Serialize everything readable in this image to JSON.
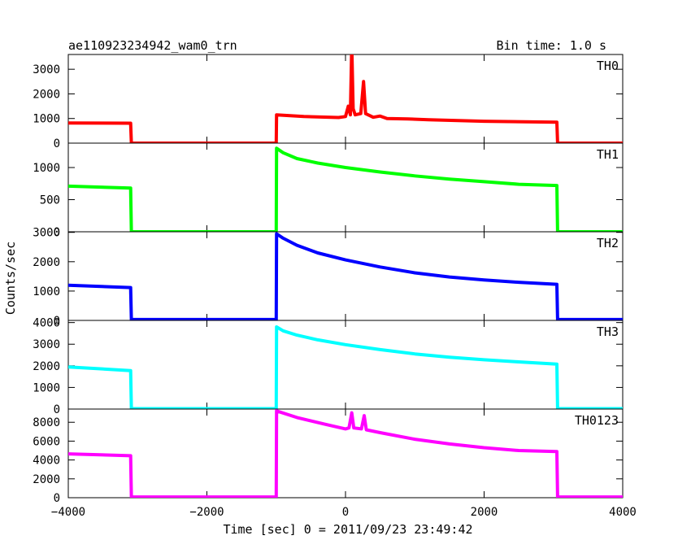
{
  "figure": {
    "title": "ae110923234942_wam0_trn",
    "bin_time": "Bin time: 1.0 s",
    "xlabel": "Time [sec] 0 = 2011/09/23 23:49:42",
    "ylabel": "Counts/sec"
  },
  "chart_data": {
    "type": "line",
    "title": "ae110923234942_wam0_trn",
    "xlabel": "Time [sec] 0 = 2011/09/23 23:49:42",
    "ylabel": "Counts/sec",
    "xlim": [
      -4000,
      4000
    ],
    "x_ticks": [
      -4000,
      -2000,
      0,
      2000,
      4000
    ],
    "x_tick_labels": [
      "−4000",
      "−2000",
      "0",
      "2000",
      "4000"
    ],
    "grid": false,
    "panels": [
      {
        "name": "TH0",
        "color": "#ff0000",
        "ylim": [
          0,
          3600
        ],
        "yticks": [
          0,
          1000,
          2000,
          3000
        ],
        "ytick_labels": [
          "0",
          "1000",
          "2000",
          "3000"
        ],
        "points": [
          [
            -4000,
            820
          ],
          [
            -3100,
            810
          ],
          [
            -3090,
            0
          ],
          [
            -1000,
            0
          ],
          [
            -995,
            1150
          ],
          [
            -600,
            1080
          ],
          [
            -100,
            1040
          ],
          [
            0,
            1080
          ],
          [
            40,
            1500
          ],
          [
            70,
            1150
          ],
          [
            90,
            4000
          ],
          [
            110,
            1400
          ],
          [
            140,
            1150
          ],
          [
            220,
            1200
          ],
          [
            260,
            2500
          ],
          [
            290,
            1200
          ],
          [
            400,
            1050
          ],
          [
            500,
            1100
          ],
          [
            600,
            1000
          ],
          [
            900,
            980
          ],
          [
            1200,
            950
          ],
          [
            2000,
            890
          ],
          [
            3050,
            850
          ],
          [
            3060,
            0
          ],
          [
            4000,
            0
          ]
        ]
      },
      {
        "name": "TH1",
        "color": "#00ff00",
        "ylim": [
          0,
          1380
        ],
        "yticks": [
          0,
          500,
          1000
        ],
        "ytick_labels": [
          "0",
          "500",
          "1000"
        ],
        "points": [
          [
            -4000,
            710
          ],
          [
            -3100,
            680
          ],
          [
            -3090,
            0
          ],
          [
            -1000,
            0
          ],
          [
            -995,
            1300
          ],
          [
            -900,
            1230
          ],
          [
            -700,
            1140
          ],
          [
            -400,
            1070
          ],
          [
            0,
            1000
          ],
          [
            500,
            930
          ],
          [
            1000,
            870
          ],
          [
            1500,
            820
          ],
          [
            2000,
            780
          ],
          [
            2500,
            740
          ],
          [
            3050,
            720
          ],
          [
            3060,
            0
          ],
          [
            4000,
            0
          ]
        ]
      },
      {
        "name": "TH2",
        "color": "#0000ff",
        "ylim": [
          0,
          3020
        ],
        "yticks": [
          0,
          1000,
          2000,
          3000
        ],
        "ytick_labels": [
          "0",
          "1000",
          "2000",
          "3000"
        ],
        "points": [
          [
            -4000,
            1200
          ],
          [
            -3100,
            1120
          ],
          [
            -3090,
            30
          ],
          [
            -1000,
            30
          ],
          [
            -995,
            2950
          ],
          [
            -900,
            2800
          ],
          [
            -700,
            2560
          ],
          [
            -400,
            2300
          ],
          [
            0,
            2060
          ],
          [
            500,
            1820
          ],
          [
            1000,
            1620
          ],
          [
            1500,
            1480
          ],
          [
            2000,
            1380
          ],
          [
            2500,
            1300
          ],
          [
            3050,
            1230
          ],
          [
            3060,
            30
          ],
          [
            4000,
            30
          ]
        ]
      },
      {
        "name": "TH3",
        "color": "#00ffff",
        "ylim": [
          0,
          4100
        ],
        "yticks": [
          0,
          1000,
          2000,
          3000,
          4000
        ],
        "ytick_labels": [
          "0",
          "1000",
          "2000",
          "3000",
          "4000"
        ],
        "points": [
          [
            -4000,
            1950
          ],
          [
            -3100,
            1780
          ],
          [
            -3090,
            20
          ],
          [
            -1000,
            20
          ],
          [
            -995,
            3800
          ],
          [
            -900,
            3620
          ],
          [
            -700,
            3420
          ],
          [
            -400,
            3200
          ],
          [
            0,
            2980
          ],
          [
            500,
            2750
          ],
          [
            1000,
            2550
          ],
          [
            1500,
            2400
          ],
          [
            2000,
            2280
          ],
          [
            2500,
            2180
          ],
          [
            3050,
            2080
          ],
          [
            3060,
            20
          ],
          [
            4000,
            20
          ]
        ]
      },
      {
        "name": "TH0123",
        "color": "#ff00ff",
        "ylim": [
          0,
          9400
        ],
        "yticks": [
          0,
          2000,
          4000,
          6000,
          8000
        ],
        "ytick_labels": [
          "0",
          "2000",
          "4000",
          "6000",
          "8000"
        ],
        "points": [
          [
            -4000,
            4650
          ],
          [
            -3100,
            4450
          ],
          [
            -3090,
            80
          ],
          [
            -1000,
            80
          ],
          [
            -995,
            9200
          ],
          [
            -700,
            8500
          ],
          [
            -300,
            7800
          ],
          [
            0,
            7300
          ],
          [
            50,
            7400
          ],
          [
            90,
            9000
          ],
          [
            120,
            7400
          ],
          [
            230,
            7300
          ],
          [
            270,
            8700
          ],
          [
            300,
            7200
          ],
          [
            500,
            6900
          ],
          [
            1000,
            6200
          ],
          [
            1500,
            5700
          ],
          [
            2000,
            5300
          ],
          [
            2500,
            5000
          ],
          [
            3050,
            4900
          ],
          [
            3060,
            80
          ],
          [
            4000,
            80
          ]
        ]
      }
    ]
  }
}
